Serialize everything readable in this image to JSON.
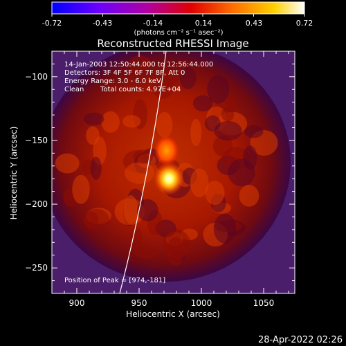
{
  "colorbar": {
    "ticks": [
      "-0.72",
      "-0.43",
      "-0.14",
      "0.14",
      "0.43",
      "0.72"
    ],
    "tick_values": [
      -0.72,
      -0.43,
      -0.14,
      0.14,
      0.43,
      0.72
    ],
    "range": [
      -0.72,
      0.72
    ],
    "units_label": "(photons cm⁻² s⁻¹ asec⁻²)",
    "colors": [
      "#0000ff",
      "#7a00ff",
      "#c000c0",
      "#ff0000",
      "#ff8000",
      "#ffff00",
      "#ffffff"
    ]
  },
  "chart_data": {
    "type": "heatmap",
    "title": "Reconstructed RHESSI Image",
    "xlabel": "Heliocentric X (arcsec)",
    "ylabel": "Heliocentric Y (arcsec)",
    "xlim": [
      880,
      1075
    ],
    "ylim": [
      -270,
      -80
    ],
    "xticks": [
      900,
      950,
      1000,
      1050
    ],
    "yticks": [
      -100,
      -150,
      -200,
      -250
    ],
    "peak": [
      974,
      -181
    ],
    "sources": [
      {
        "x": 974,
        "y": -180,
        "intensity": 0.72
      },
      {
        "x": 972,
        "y": -158,
        "intensity": 0.45
      }
    ],
    "annotations": {
      "time_range": "14-Jan-2003 12:50:44.000 to 12:56:44.000",
      "detectors": "Detectors: 3F 4F 5F 6F 7F 8F, Att 0",
      "energy": "Energy Range: 3.0 - 6.0 keV",
      "method": "Clean",
      "counts": "Total counts: 4.97E+04",
      "peak_position": "Position of Peak = [974,-181]"
    }
  },
  "footer": {
    "timestamp": "28-Apr-2022 02:26"
  }
}
